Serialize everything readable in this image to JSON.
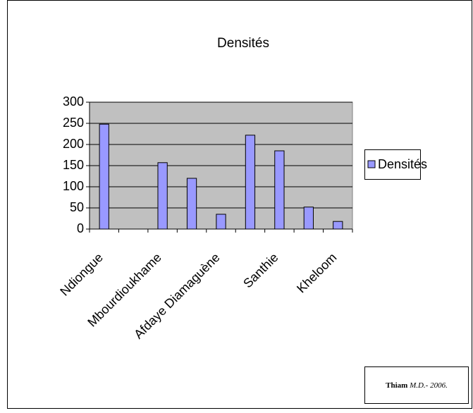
{
  "chart_data": {
    "type": "bar",
    "title": "Densités",
    "categories": [
      "Ndiongue",
      null,
      "Mbourdioukhame",
      null,
      "Afdaye Diamaguène",
      null,
      "Santhie",
      null,
      "Kheloom"
    ],
    "series": [
      {
        "name": "Densités",
        "color": "#9999ff",
        "values": [
          248,
          0,
          157,
          120,
          35,
          222,
          185,
          52,
          18
        ]
      }
    ],
    "ylim": [
      0,
      300
    ],
    "yticks": [
      0,
      50,
      100,
      150,
      200,
      250,
      300
    ],
    "grid": true,
    "legend": "right"
  },
  "credit": {
    "name": "Thiam",
    "text": "M.D.- 2006."
  }
}
